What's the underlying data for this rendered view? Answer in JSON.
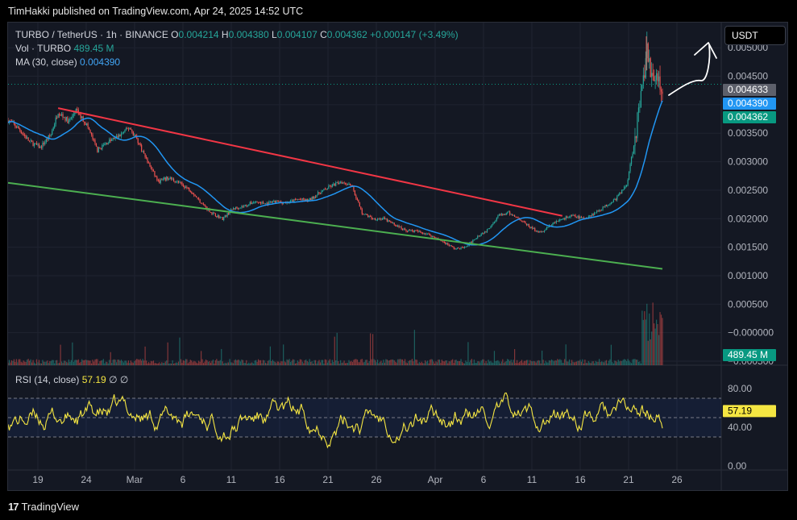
{
  "header": {
    "text": "TimHakki published on TradingView.com, Apr 24, 2025 14:52 UTC"
  },
  "legend": {
    "symbol": "TURBO / TetherUS · 1h · BINANCE",
    "o_label": "O",
    "o": "0.004214",
    "h_label": "H",
    "h": "0.004380",
    "l_label": "L",
    "l": "0.004107",
    "c_label": "C",
    "c": "0.004362",
    "change": "+0.000147 (+3.49%)",
    "vol_label": "Vol · TURBO",
    "vol": "489.45 M",
    "ma_label": "MA (30, close)",
    "ma": "0.004390"
  },
  "rsi_legend": {
    "label": "RSI (14, close)",
    "value": "57.19",
    "extra": "∅ ∅"
  },
  "currency": "USDT",
  "footer": {
    "logo": "17",
    "brand": "TradingView"
  },
  "colors": {
    "up": "#26a69a",
    "down": "#ef5350",
    "ma": "#2196f3",
    "trend_red": "#f23645",
    "trend_green": "#4caf50",
    "rsi": "#f5e642"
  },
  "chart_data": {
    "type": "candlestick",
    "price_axis": {
      "ticks": [
        "0.005000",
        "0.004500",
        "0.004000",
        "0.003500",
        "0.003000",
        "0.002500",
        "0.002000",
        "0.001500",
        "0.001000",
        "0.000500",
        "−0.000000",
        "−0.000500"
      ],
      "range": [
        -0.0005,
        0.0053
      ]
    },
    "price_badges": [
      {
        "label": "0.004633",
        "color": "#5d606b"
      },
      {
        "label": "0.004390",
        "color": "#2196f3"
      },
      {
        "label": "0.004362",
        "color": "#089981"
      },
      {
        "label": "489.45 M",
        "color": "#089981"
      }
    ],
    "x_axis": {
      "labels": [
        "19",
        "24",
        "Mar",
        "6",
        "11",
        "16",
        "21",
        "26",
        "Apr",
        "6",
        "11",
        "16",
        "21",
        "26"
      ]
    },
    "price_path": [
      [
        0,
        0.00373
      ],
      [
        3,
        0.00358
      ],
      [
        6,
        0.00335
      ],
      [
        9,
        0.00325
      ],
      [
        12,
        0.00348
      ],
      [
        14,
        0.00388
      ],
      [
        17,
        0.0037
      ],
      [
        19,
        0.0039
      ],
      [
        22,
        0.00365
      ],
      [
        25,
        0.0032
      ],
      [
        28,
        0.00335
      ],
      [
        31,
        0.00345
      ],
      [
        34,
        0.0036
      ],
      [
        36,
        0.0034
      ],
      [
        39,
        0.003
      ],
      [
        42,
        0.00265
      ],
      [
        45,
        0.00272
      ],
      [
        48,
        0.00262
      ],
      [
        51,
        0.0025
      ],
      [
        54,
        0.00228
      ],
      [
        57,
        0.0021
      ],
      [
        60,
        0.002
      ],
      [
        63,
        0.00218
      ],
      [
        66,
        0.00222
      ],
      [
        69,
        0.0023
      ],
      [
        72,
        0.00226
      ],
      [
        75,
        0.0023
      ],
      [
        78,
        0.00228
      ],
      [
        81,
        0.00234
      ],
      [
        84,
        0.00232
      ],
      [
        87,
        0.00245
      ],
      [
        90,
        0.00256
      ],
      [
        93,
        0.00265
      ],
      [
        96,
        0.0026
      ],
      [
        99,
        0.0021
      ],
      [
        102,
        0.002
      ],
      [
        105,
        0.002
      ],
      [
        108,
        0.0019
      ],
      [
        111,
        0.0018
      ],
      [
        114,
        0.00178
      ],
      [
        117,
        0.00174
      ],
      [
        120,
        0.00165
      ],
      [
        123,
        0.00155
      ],
      [
        125,
        0.00147
      ],
      [
        128,
        0.0015
      ],
      [
        131,
        0.00168
      ],
      [
        134,
        0.0018
      ],
      [
        137,
        0.00205
      ],
      [
        140,
        0.0021
      ],
      [
        143,
        0.002
      ],
      [
        146,
        0.00185
      ],
      [
        149,
        0.00175
      ],
      [
        152,
        0.0019
      ],
      [
        155,
        0.002
      ],
      [
        158,
        0.00205
      ],
      [
        161,
        0.002
      ],
      [
        164,
        0.0021
      ],
      [
        167,
        0.00222
      ],
      [
        170,
        0.00235
      ],
      [
        173,
        0.0026
      ],
      [
        175,
        0.0033
      ],
      [
        177,
        0.0041
      ],
      [
        178.5,
        0.0049
      ],
      [
        180,
        0.0046
      ],
      [
        181.5,
        0.00445
      ],
      [
        183,
        0.00436
      ]
    ],
    "ma_value": 0.00439,
    "trendlines": [
      {
        "name": "resistance",
        "points": [
          [
            14,
            0.00394
          ],
          [
            155,
            0.00205
          ]
        ],
        "color": "#f23645"
      },
      {
        "name": "support",
        "points": [
          [
            0,
            0.00263
          ],
          [
            183,
            0.00112
          ]
        ],
        "color": "#4caf50"
      }
    ],
    "spike_high": 0.0052,
    "rsi": {
      "value": 57.19,
      "bands": [
        70,
        50,
        30
      ],
      "axis_ticks": [
        "80.00",
        "57.19",
        "40.00",
        "0.00"
      ],
      "range": [
        0,
        100
      ]
    },
    "volume": {
      "last": "489.45 M"
    }
  }
}
